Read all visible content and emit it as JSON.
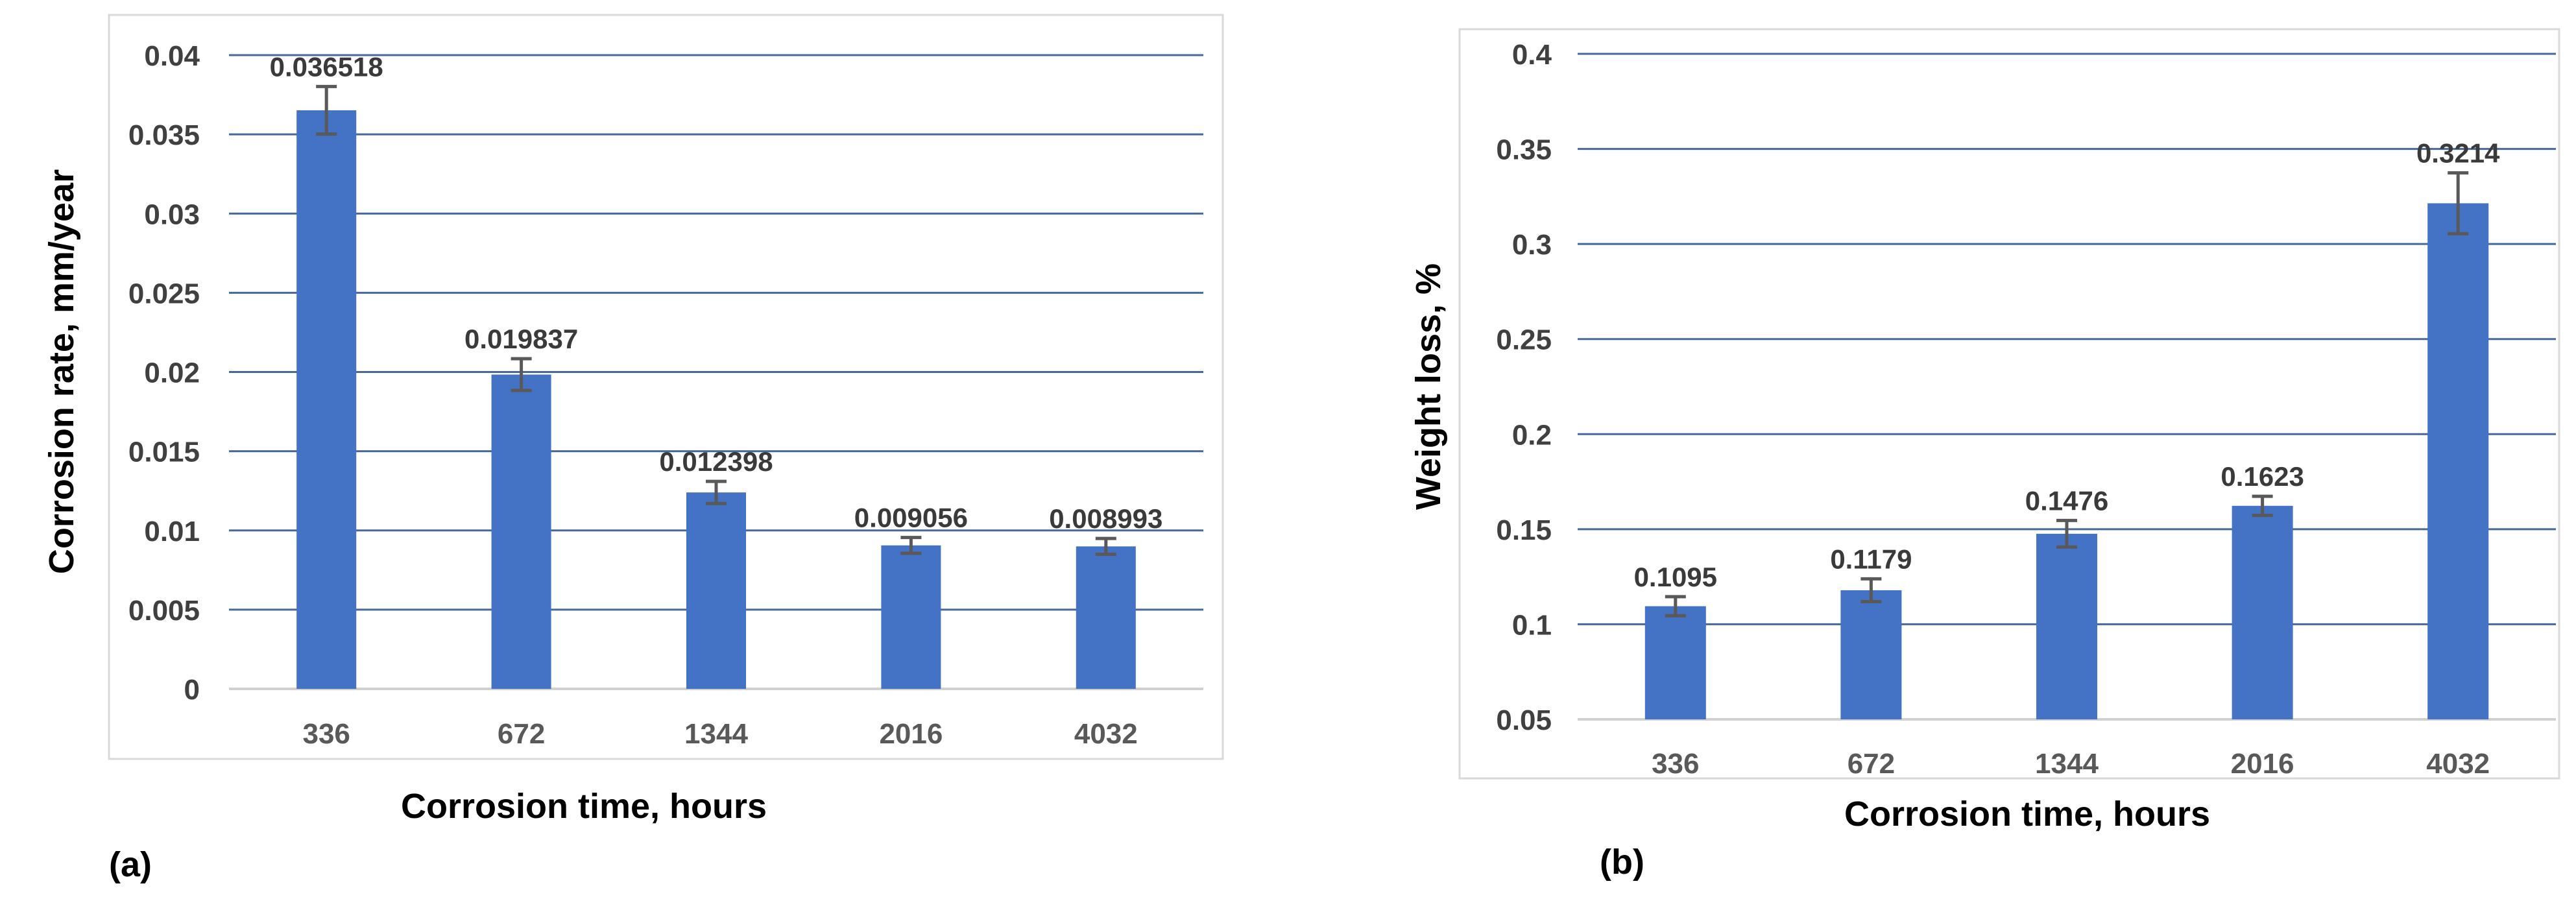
{
  "style": {
    "bar_color": "#4472C4",
    "grid_color": "#46689A",
    "axis_line_color": "#D0D0D0",
    "border_color": "#D9D9D9",
    "error_color": "#595959",
    "ytick_color": "#404040",
    "xtick_color": "#595959",
    "data_label_color": "#3A3A3A",
    "title_color": "#000000",
    "background": "#FFFFFF"
  },
  "chart_data": [
    {
      "id": "a",
      "type": "bar",
      "panel_label": "(a)",
      "xlabel": "Corrosion time, hours",
      "ylabel": "Corrosion rate, mm/year",
      "categories": [
        "336",
        "672",
        "1344",
        "2016",
        "4032"
      ],
      "values": [
        0.036518,
        0.019837,
        0.012398,
        0.009056,
        0.008993
      ],
      "value_labels": [
        "0.036518",
        "0.019837",
        "0.012398",
        "0.009056",
        "0.008993"
      ],
      "errors": [
        0.0015,
        0.001,
        0.0007,
        0.0005,
        0.0005
      ],
      "ylim": [
        0,
        0.04
      ],
      "grid": true,
      "legend": "none",
      "yticks": [
        {
          "value": 0,
          "label": "0"
        },
        {
          "value": 0.005,
          "label": "0.005"
        },
        {
          "value": 0.01,
          "label": "0.01"
        },
        {
          "value": 0.015,
          "label": "0.015"
        },
        {
          "value": 0.02,
          "label": "0.02"
        },
        {
          "value": 0.025,
          "label": "0.025"
        },
        {
          "value": 0.03,
          "label": "0.03"
        },
        {
          "value": 0.035,
          "label": "0.035"
        },
        {
          "value": 0.04,
          "label": "0.04"
        }
      ]
    },
    {
      "id": "b",
      "type": "bar",
      "panel_label": "(b)",
      "xlabel": "Corrosion time, hours",
      "ylabel": "Weight loss, %",
      "categories": [
        "336",
        "672",
        "1344",
        "2016",
        "4032"
      ],
      "values": [
        0.1095,
        0.1179,
        0.1476,
        0.1623,
        0.3214
      ],
      "value_labels": [
        "0.1095",
        "0.1179",
        "0.1476",
        "0.1623",
        "0.3214"
      ],
      "errors": [
        0.005,
        0.006,
        0.007,
        0.005,
        0.016
      ],
      "ylim": [
        0.05,
        0.4
      ],
      "grid": true,
      "legend": "none",
      "yticks": [
        {
          "value": 0.05,
          "label": "0.05"
        },
        {
          "value": 0.1,
          "label": "0.1"
        },
        {
          "value": 0.15,
          "label": "0.15"
        },
        {
          "value": 0.2,
          "label": "0.2"
        },
        {
          "value": 0.25,
          "label": "0.25"
        },
        {
          "value": 0.3,
          "label": "0.3"
        },
        {
          "value": 0.35,
          "label": "0.35"
        },
        {
          "value": 0.4,
          "label": "0.4"
        }
      ]
    }
  ]
}
